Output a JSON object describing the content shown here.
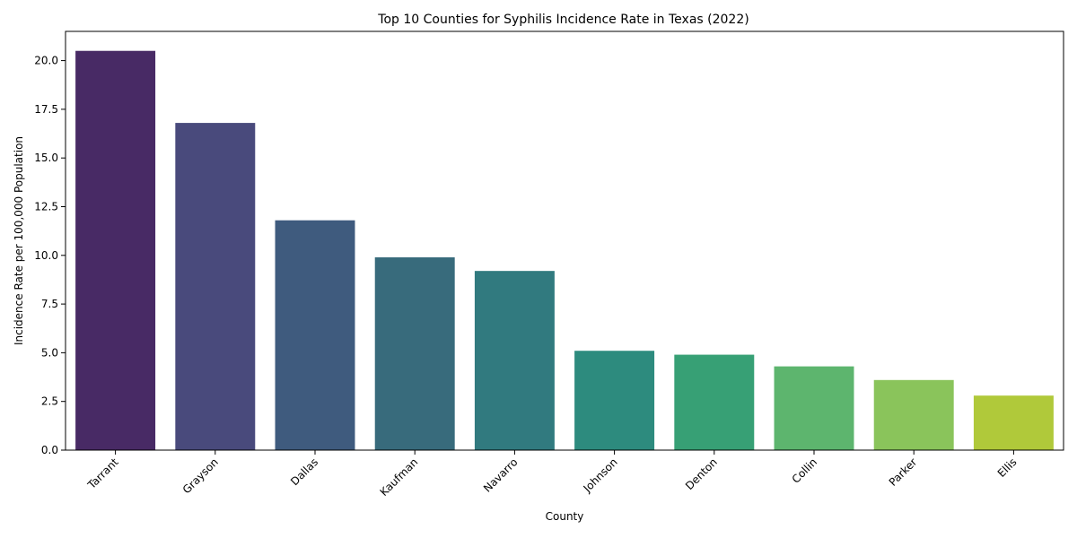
{
  "chart_data": {
    "type": "bar",
    "title": "Top 10 Counties for Syphilis Incidence Rate in Texas (2022)",
    "xlabel": "County",
    "ylabel": "Incidence Rate per 100,000 Population",
    "categories": [
      "Tarrant",
      "Grayson",
      "Dallas",
      "Kaufman",
      "Navarro",
      "Johnson",
      "Denton",
      "Collin",
      "Parker",
      "Ellis"
    ],
    "values": [
      20.5,
      16.8,
      11.8,
      9.9,
      9.2,
      5.1,
      4.9,
      4.3,
      3.6,
      2.8
    ],
    "colors": [
      "#482a65",
      "#494a7c",
      "#3f5b7e",
      "#386b7c",
      "#317a7f",
      "#2d8b7e",
      "#37a075",
      "#5db56e",
      "#8ac45b",
      "#b0c93a"
    ],
    "ylim": [
      0,
      21.5
    ],
    "yticks": [
      "0.0",
      "2.5",
      "5.0",
      "7.5",
      "10.0",
      "12.5",
      "15.0",
      "17.5",
      "20.0"
    ],
    "grid": false,
    "legend": "none"
  }
}
